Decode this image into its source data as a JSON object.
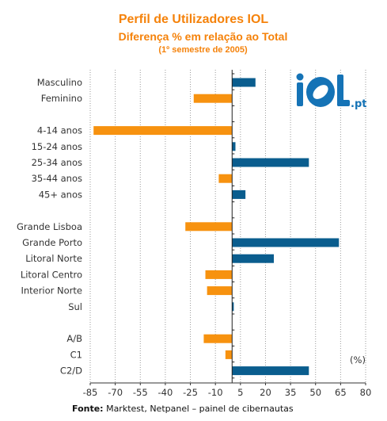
{
  "title_line1": "Perfil de Utilizadores IOL",
  "title_line2": "Diferença % em relação ao Total",
  "title_line3": "(1º semestre de 2005)",
  "source_label": "Fonte:",
  "source_text": "Marktest, Netpanel – painel de cibernautas",
  "logo_text": "iOL",
  "logo_suffix": ".pt",
  "colors": {
    "positive": "#0a5d8e",
    "negative": "#f7920f",
    "title": "#f5820a"
  },
  "chart_data": {
    "type": "bar",
    "orientation": "horizontal",
    "unit_label": "(%)",
    "xlim": [
      -85,
      80
    ],
    "xticks": [
      -85,
      -70,
      -55,
      -40,
      -25,
      -10,
      5,
      20,
      35,
      50,
      65,
      80
    ],
    "grid": true,
    "categories": [
      {
        "label": "Masculino",
        "value": 14,
        "group": 0
      },
      {
        "label": "Feminino",
        "value": -23,
        "group": 0
      },
      {
        "label": "4-14 anos",
        "value": -83,
        "group": 1
      },
      {
        "label": "15-24 anos",
        "value": 2,
        "group": 1
      },
      {
        "label": "25-34 anos",
        "value": 46,
        "group": 1
      },
      {
        "label": "35-44 anos",
        "value": -8,
        "group": 1
      },
      {
        "label": "45+ anos",
        "value": 8,
        "group": 1
      },
      {
        "label": "Grande Lisboa",
        "value": -28,
        "group": 2
      },
      {
        "label": "Grande Porto",
        "value": 64,
        "group": 2
      },
      {
        "label": "Litoral Norte",
        "value": 25,
        "group": 2
      },
      {
        "label": "Litoral Centro",
        "value": -16,
        "group": 2
      },
      {
        "label": "Interior Norte",
        "value": -15,
        "group": 2
      },
      {
        "label": "Sul",
        "value": 1,
        "group": 2
      },
      {
        "label": "A/B",
        "value": -17,
        "group": 3
      },
      {
        "label": "C1",
        "value": -4,
        "group": 3
      },
      {
        "label": "C2/D",
        "value": 46,
        "group": 3
      }
    ]
  }
}
